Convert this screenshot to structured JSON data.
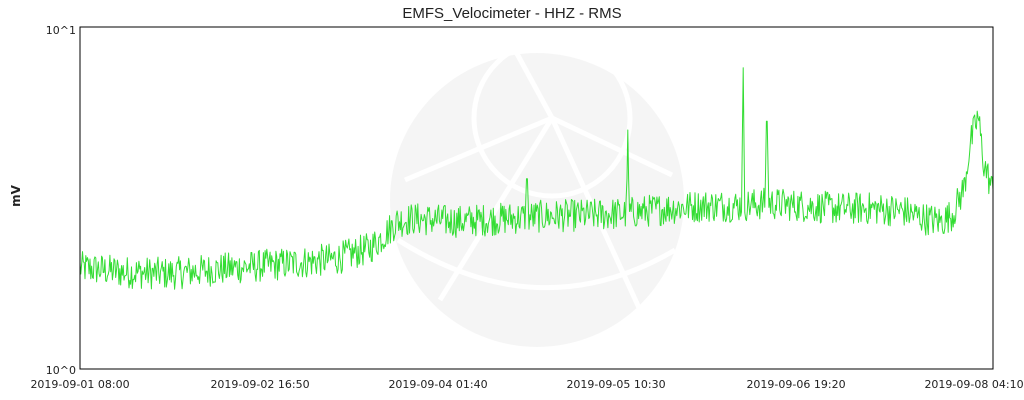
{
  "chart_data": {
    "type": "line",
    "title": "EMFS_Velocimeter - HHZ - RMS",
    "xlabel": "",
    "ylabel": "mV",
    "y_scale": "log",
    "ylim": [
      1,
      10
    ],
    "y_tick_labels": [
      "10^1",
      "10^0"
    ],
    "x_tick_labels": [
      "2019-09-01 08:00",
      "2019-09-02 16:50",
      "2019-09-04 01:40",
      "2019-09-05 10:30",
      "2019-09-06 19:20",
      "2019-09-08 04:10"
    ],
    "xlim": [
      "2019-09-01 08:00",
      "2019-09-08 04:10"
    ],
    "grid": false,
    "series_color": "#33dd33",
    "series": [
      {
        "x": [
          "2019-09-01 08:00",
          "2019-09-01 16:00",
          "2019-09-02 00:00",
          "2019-09-02 08:00",
          "2019-09-02 16:00",
          "2019-09-03 00:00",
          "2019-09-03 06:00",
          "2019-09-03 12:00",
          "2019-09-03 14:00",
          "2019-09-03 17:00",
          "2019-09-03 20:00",
          "2019-09-04 04:00",
          "2019-09-04 12:00",
          "2019-09-04 20:00",
          "2019-09-05 04:00",
          "2019-09-05 10:00",
          "2019-09-05 14:00",
          "2019-09-05 18:00",
          "2019-09-06 00:00",
          "2019-09-06 06:00",
          "2019-09-06 12:00",
          "2019-09-06 18:00",
          "2019-09-07 00:00",
          "2019-09-07 06:00",
          "2019-09-07 12:00",
          "2019-09-07 16:00",
          "2019-09-07 19:00",
          "2019-09-07 21:00",
          "2019-09-07 23:00",
          "2019-09-08 00:00",
          "2019-09-08 01:30",
          "2019-09-08 02:30",
          "2019-09-08 04:10"
        ],
        "values": [
          1.98,
          1.92,
          1.9,
          1.95,
          2.0,
          2.05,
          2.1,
          2.25,
          2.4,
          2.7,
          2.75,
          2.7,
          2.75,
          2.8,
          2.82,
          2.85,
          2.9,
          2.95,
          3.0,
          3.0,
          3.05,
          3.0,
          2.95,
          2.95,
          2.9,
          2.75,
          2.7,
          2.85,
          3.4,
          4.5,
          5.5,
          4.0,
          3.3
        ]
      }
    ],
    "spikes": [
      {
        "x": "2019-09-04 16:20",
        "value": 3.6
      },
      {
        "x": "2019-09-05 10:30",
        "value": 5.0
      },
      {
        "x": "2019-09-06 07:15",
        "value": 7.6
      },
      {
        "x": "2019-09-06 11:30",
        "value": 5.3
      }
    ]
  }
}
